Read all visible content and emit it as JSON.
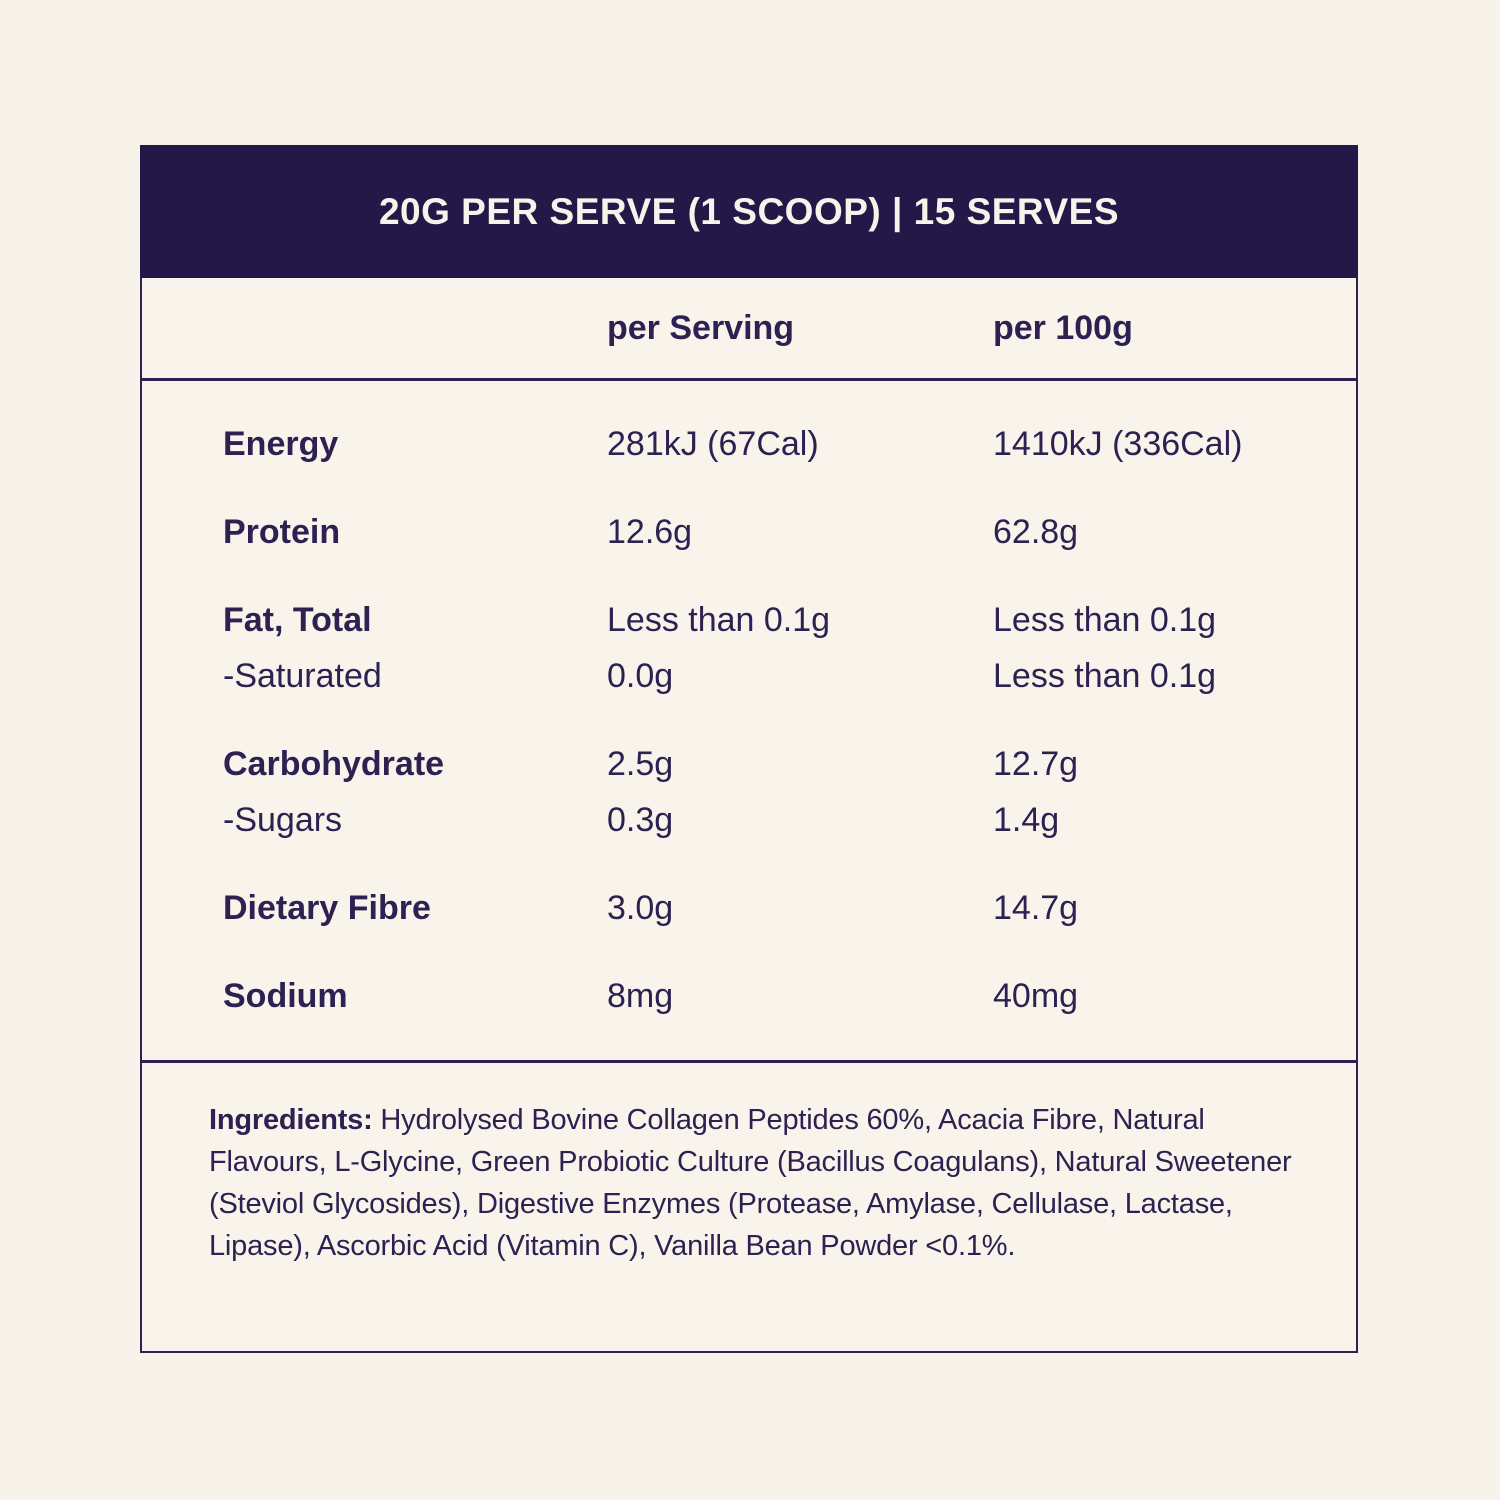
{
  "banner": {
    "title": "20G PER SERVE (1 SCOOP) | 15 SERVES"
  },
  "table": {
    "columns": [
      "per Serving",
      "per 100g"
    ],
    "rows": [
      {
        "label": "Energy",
        "per_serving": "281kJ (67Cal)",
        "per_100g": "1410kJ (336Cal)"
      },
      {
        "label": "Protein",
        "per_serving": "12.6g",
        "per_100g": "62.8g"
      },
      {
        "label": "Fat, Total",
        "per_serving": "Less than 0.1g",
        "per_100g": "Less than 0.1g"
      },
      {
        "label": "-Saturated",
        "per_serving": "0.0g",
        "per_100g": "Less than 0.1g"
      },
      {
        "label": "Carbohydrate",
        "per_serving": "2.5g",
        "per_100g": "12.7g"
      },
      {
        "label": "-Sugars",
        "per_serving": "0.3g",
        "per_100g": "1.4g"
      },
      {
        "label": "Dietary Fibre",
        "per_serving": "3.0g",
        "per_100g": "14.7g"
      },
      {
        "label": "Sodium",
        "per_serving": "8mg",
        "per_100g": "40mg"
      }
    ]
  },
  "ingredients": {
    "label": "Ingredients:",
    "text": "Hydrolysed Bovine Collagen Peptides 60%, Acacia Fibre, Natural Flavours, L-Glycine, Green Probiotic Culture (Bacillus Coagulans), Natural Sweetener (Steviol Glycosides), Digestive Enzymes (Protease, Amylase, Cellulase, Lactase, Lipase), Ascorbic Acid (Vitamin C), Vanilla Bean Powder <0.1%."
  },
  "colors": {
    "background": "#f8f3ea",
    "banner_background": "#241849",
    "text_purple": "#2e2152"
  }
}
